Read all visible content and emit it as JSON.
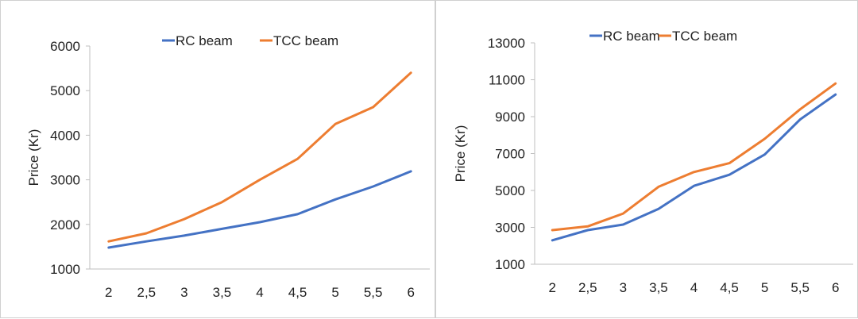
{
  "colors": {
    "rc": "#4472c4",
    "tcc": "#ed7d31",
    "axis": "#bfbfbf",
    "text": "#222222"
  },
  "chart_data": [
    {
      "type": "line",
      "categories": [
        "2",
        "2,5",
        "3",
        "3,5",
        "4",
        "4,5",
        "5",
        "5,5",
        "6"
      ],
      "ylabel": "Price (Kr)",
      "ylim": [
        1000,
        6000
      ],
      "yticks": [
        1000,
        2000,
        3000,
        4000,
        5000,
        6000
      ],
      "grid": false,
      "legend_position": "top-center",
      "series": [
        {
          "name": "RC beam",
          "color": "#4472c4",
          "values": [
            1480,
            1620,
            1750,
            1900,
            2050,
            2230,
            2560,
            2850,
            3190
          ]
        },
        {
          "name": "TCC beam",
          "color": "#ed7d31",
          "values": [
            1620,
            1800,
            2120,
            2500,
            3000,
            3470,
            4250,
            4630,
            5400
          ]
        }
      ]
    },
    {
      "type": "line",
      "categories": [
        "2",
        "2,5",
        "3",
        "3,5",
        "4",
        "4,5",
        "5",
        "5,5",
        "6"
      ],
      "ylabel": "Price (Kr)",
      "ylim": [
        1000,
        13000
      ],
      "yticks": [
        1000,
        3000,
        5000,
        7000,
        9000,
        11000,
        13000
      ],
      "grid": false,
      "legend_position": "top-center",
      "series": [
        {
          "name": "RC beam",
          "color": "#4472c4",
          "values": [
            2300,
            2850,
            3150,
            4000,
            5250,
            5850,
            6950,
            8850,
            10200
          ]
        },
        {
          "name": "TCC beam",
          "color": "#ed7d31",
          "values": [
            2850,
            3050,
            3750,
            5200,
            6000,
            6480,
            7800,
            9400,
            10800
          ]
        }
      ]
    }
  ]
}
